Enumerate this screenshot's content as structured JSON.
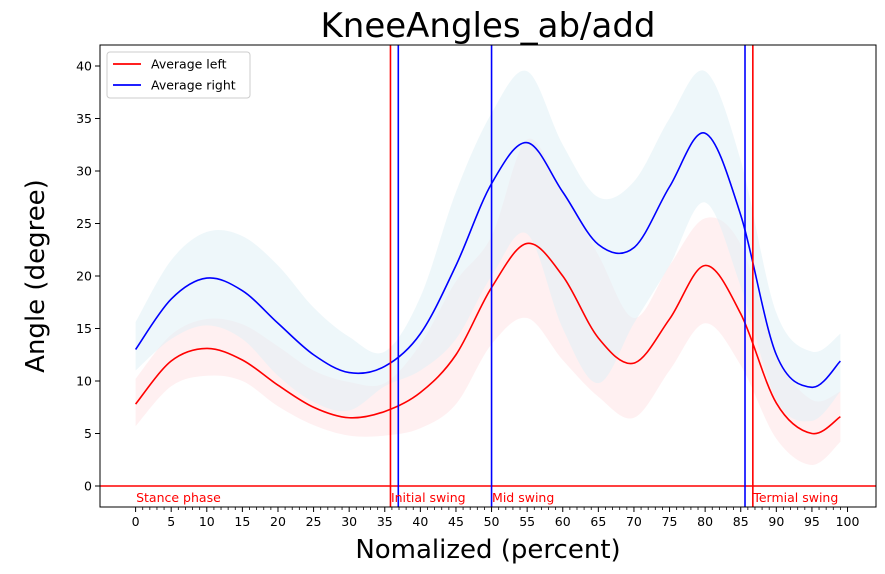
{
  "chart_data": {
    "type": "line",
    "title": "KneeAngles_ab/add",
    "xlabel": "Nomalized (percent)",
    "ylabel": "Angle (degree)",
    "xlim": [
      -5,
      104
    ],
    "ylim": [
      -2,
      42
    ],
    "xticks": [
      "0",
      "5",
      "10",
      "15",
      "20",
      "25",
      "30",
      "35",
      "40",
      "45",
      "50",
      "55",
      "60",
      "65",
      "70",
      "75",
      "80",
      "85",
      "90",
      "95",
      "100"
    ],
    "xtick_values": [
      0,
      5,
      10,
      15,
      20,
      25,
      30,
      35,
      40,
      45,
      50,
      55,
      60,
      65,
      70,
      75,
      80,
      85,
      90,
      95,
      100
    ],
    "yticks": [
      "0",
      "5",
      "10",
      "15",
      "20",
      "25",
      "30",
      "35",
      "40"
    ],
    "ytick_values": [
      0,
      5,
      10,
      15,
      20,
      25,
      30,
      35,
      40
    ],
    "legend_position": "top-left",
    "x": [
      0,
      5,
      10,
      15,
      20,
      25,
      30,
      35,
      40,
      45,
      50,
      55,
      60,
      65,
      70,
      75,
      80,
      85,
      90,
      95,
      99
    ],
    "series": [
      {
        "name": "Average left",
        "color": "#ff0000",
        "band_color": "#ffe4e6",
        "values": [
          7.8,
          11.9,
          13.1,
          12.0,
          9.6,
          7.5,
          6.5,
          7.1,
          8.9,
          12.5,
          18.9,
          23.1,
          20.0,
          14.1,
          11.7,
          15.9,
          21.0,
          16.4,
          7.9,
          5.0,
          6.6
        ],
        "upper": [
          10.2,
          14.4,
          15.9,
          15.4,
          13.3,
          11.0,
          9.9,
          9.8,
          13.5,
          19.5,
          23.8,
          33.0,
          28.0,
          22.0,
          16.0,
          21.0,
          25.5,
          23.0,
          12.5,
          8.2,
          9.0
        ],
        "lower": [
          5.7,
          9.5,
          10.5,
          10.0,
          7.6,
          5.8,
          4.8,
          4.8,
          5.5,
          7.8,
          13.5,
          16.0,
          12.0,
          8.5,
          6.5,
          11.0,
          15.5,
          11.5,
          4.5,
          2.0,
          4.2
        ]
      },
      {
        "name": "Average right",
        "color": "#0000ff",
        "band_color": "#e0f0f6",
        "values": [
          13.0,
          17.8,
          19.8,
          18.6,
          15.5,
          12.5,
          10.8,
          11.4,
          14.5,
          21.0,
          28.8,
          32.7,
          28.0,
          23.0,
          22.7,
          28.5,
          33.6,
          25.8,
          12.5,
          9.4,
          11.9
        ],
        "upper": [
          15.6,
          21.5,
          24.2,
          23.8,
          21.0,
          17.0,
          14.2,
          12.8,
          18.0,
          28.0,
          35.5,
          39.5,
          32.5,
          27.5,
          29.0,
          35.0,
          39.5,
          31.0,
          16.5,
          12.8,
          14.5
        ],
        "lower": [
          11.0,
          14.0,
          15.3,
          14.0,
          10.5,
          8.0,
          7.2,
          9.5,
          11.0,
          14.0,
          20.0,
          24.0,
          15.0,
          9.8,
          15.5,
          21.0,
          27.0,
          19.0,
          8.2,
          6.2,
          9.0
        ]
      }
    ],
    "vertical_lines": [
      {
        "x": 35.8,
        "color": "#ff0000"
      },
      {
        "x": 36.9,
        "color": "#0000ff"
      },
      {
        "x": 50.0,
        "color": "#0000ff"
      },
      {
        "x": 85.6,
        "color": "#0000ff"
      },
      {
        "x": 86.7,
        "color": "#ff0000"
      }
    ],
    "horizontal_lines": [
      {
        "y": 0,
        "color": "#ff0000"
      }
    ],
    "annotations": [
      {
        "text": "Stance phase",
        "x": 0,
        "color": "#ff0000"
      },
      {
        "text": "Initial swing",
        "x": 35.8,
        "color": "#ff0000"
      },
      {
        "text": "Mid swing",
        "x": 50.0,
        "color": "#ff0000"
      },
      {
        "text": "Termial swing",
        "x": 86.7,
        "color": "#ff0000"
      }
    ]
  }
}
